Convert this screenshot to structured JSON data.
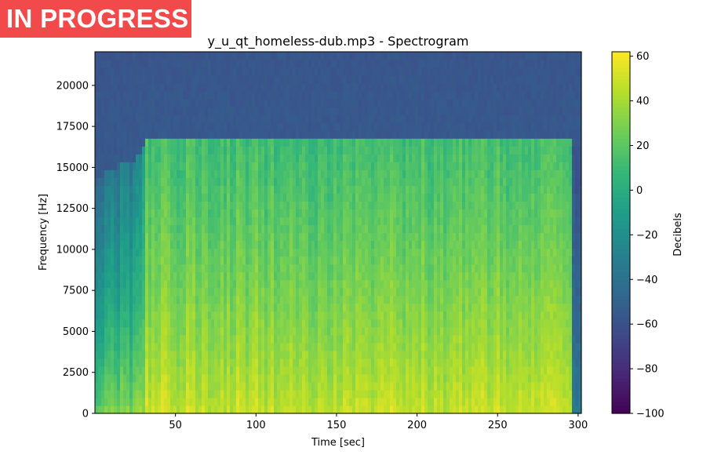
{
  "status_badge": {
    "text": "IN PROGRESS",
    "color": "#f24a4a"
  },
  "chart_data": {
    "type": "heatmap",
    "title": "y_u_qt_homeless-dub.mp3 - Spectrogram",
    "xlabel": "Time [sec]",
    "ylabel": "Frequency [Hz]",
    "colorbar_label": "Decibels",
    "colormap": "viridis",
    "xlim": [
      0,
      302
    ],
    "ylim": [
      0,
      22050
    ],
    "clim": [
      -100,
      62
    ],
    "xticks": [
      50,
      100,
      150,
      200,
      250,
      300
    ],
    "yticks": [
      0,
      2500,
      5000,
      7500,
      10000,
      12500,
      15000,
      17500,
      20000
    ],
    "cticks": [
      -100,
      -80,
      -60,
      -40,
      -20,
      0,
      20,
      40,
      60
    ],
    "xtick_labels": [
      "50",
      "100",
      "150",
      "200",
      "250",
      "300"
    ],
    "ytick_labels": [
      "0",
      "2500",
      "5000",
      "7500",
      "10000",
      "12500",
      "15000",
      "17500",
      "20000"
    ],
    "ctick_labels": [
      "−100",
      "−80",
      "−60",
      "−40",
      "−20",
      "0",
      "20",
      "40",
      "60"
    ],
    "profile": {
      "time": [
        0,
        14,
        28,
        30,
        175,
        295,
        296,
        302
      ],
      "cutoff_hz": [
        14000,
        15000,
        15500,
        16500,
        16500,
        16500,
        16000,
        16000
      ],
      "low_db": [
        25,
        30,
        30,
        48,
        48,
        48,
        -30,
        -30
      ],
      "high_db": [
        -40,
        -35,
        -30,
        12,
        12,
        12,
        -55,
        -55
      ],
      "noise_floor_db": -55
    }
  }
}
